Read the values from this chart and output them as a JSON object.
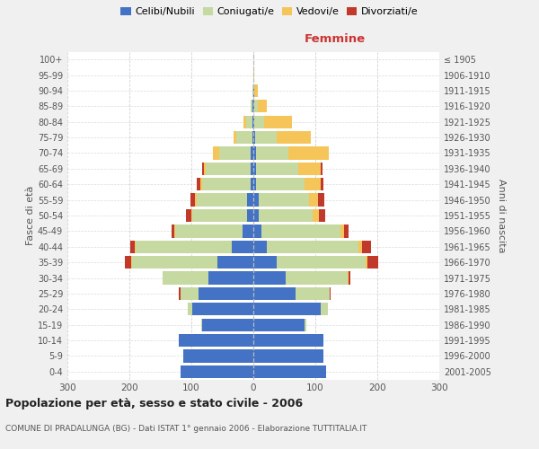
{
  "age_groups": [
    "0-4",
    "5-9",
    "10-14",
    "15-19",
    "20-24",
    "25-29",
    "30-34",
    "35-39",
    "40-44",
    "45-49",
    "50-54",
    "55-59",
    "60-64",
    "65-69",
    "70-74",
    "75-79",
    "80-84",
    "85-89",
    "90-94",
    "95-99",
    "100+"
  ],
  "birth_years": [
    "2001-2005",
    "1996-2000",
    "1991-1995",
    "1986-1990",
    "1981-1985",
    "1976-1980",
    "1971-1975",
    "1966-1970",
    "1961-1965",
    "1956-1960",
    "1951-1955",
    "1946-1950",
    "1941-1945",
    "1936-1940",
    "1931-1935",
    "1926-1930",
    "1921-1925",
    "1916-1920",
    "1911-1915",
    "1906-1910",
    "≤ 1905"
  ],
  "males": {
    "celibi": [
      118,
      113,
      120,
      82,
      98,
      88,
      72,
      58,
      35,
      18,
      10,
      10,
      5,
      5,
      5,
      2,
      1,
      1,
      0,
      0,
      0
    ],
    "coniugati": [
      0,
      0,
      0,
      2,
      8,
      30,
      75,
      138,
      155,
      108,
      88,
      82,
      78,
      72,
      50,
      25,
      10,
      3,
      1,
      0,
      0
    ],
    "vedovi": [
      0,
      0,
      0,
      0,
      0,
      0,
      0,
      1,
      1,
      1,
      2,
      2,
      3,
      3,
      10,
      5,
      5,
      1,
      0,
      0,
      0
    ],
    "divorziati": [
      0,
      0,
      0,
      0,
      0,
      2,
      0,
      10,
      8,
      5,
      8,
      8,
      5,
      2,
      0,
      0,
      0,
      0,
      0,
      0,
      0
    ]
  },
  "females": {
    "nubili": [
      118,
      113,
      113,
      82,
      108,
      68,
      52,
      38,
      22,
      13,
      8,
      8,
      5,
      5,
      5,
      3,
      2,
      2,
      1,
      0,
      0
    ],
    "coniugate": [
      0,
      0,
      0,
      3,
      12,
      55,
      100,
      143,
      148,
      128,
      88,
      82,
      78,
      68,
      52,
      35,
      15,
      5,
      1,
      0,
      0
    ],
    "vedove": [
      0,
      0,
      0,
      0,
      0,
      0,
      2,
      3,
      5,
      5,
      10,
      15,
      25,
      35,
      65,
      55,
      45,
      15,
      5,
      1,
      0
    ],
    "divorziate": [
      0,
      0,
      0,
      0,
      0,
      1,
      3,
      18,
      15,
      8,
      10,
      10,
      5,
      3,
      0,
      0,
      0,
      0,
      0,
      0,
      0
    ]
  },
  "colors": {
    "celibi": "#4472c4",
    "coniugati": "#c5d9a0",
    "vedovi": "#f5c55a",
    "divorziati": "#c0392b"
  },
  "xlim": 300,
  "title": "Popolazione per età, sesso e stato civile - 2006",
  "subtitle": "COMUNE DI PRADALUNGA (BG) - Dati ISTAT 1° gennaio 2006 - Elaborazione TUTTITALIA.IT",
  "ylabel_left": "Fasce di età",
  "ylabel_right": "Anni di nascita",
  "xlabel_right": "Femmine",
  "bg_color": "#f0f0f0",
  "plot_bg_color": "#ffffff",
  "legend_labels": [
    "Celibi/Nubili",
    "Coniugati/e",
    "Vedovi/e",
    "Divorziati/e"
  ]
}
